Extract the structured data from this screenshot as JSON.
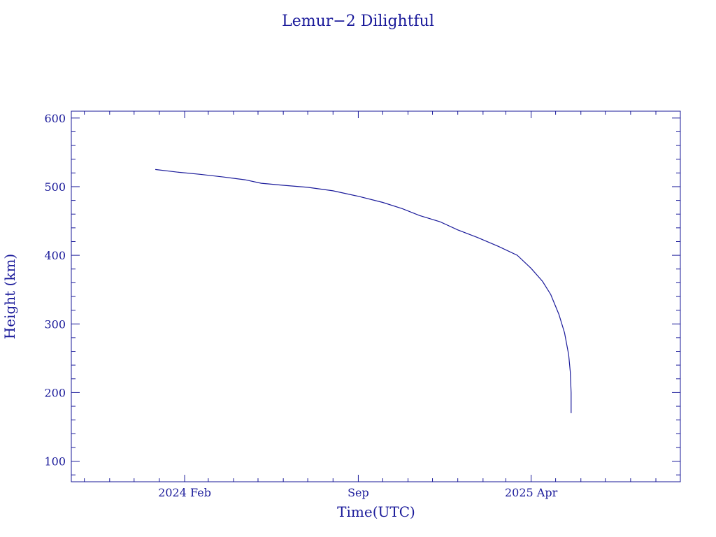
{
  "chart_data": {
    "type": "line",
    "title": "Lemur−2 Dilightful",
    "xlabel": "Time(UTC)",
    "ylabel": "Height (km)",
    "xlim": [
      "2023-09-15",
      "2025-10-01"
    ],
    "ylim": [
      70,
      610
    ],
    "x_ticks": [
      {
        "date": "2024-02-01",
        "label": "2024 Feb"
      },
      {
        "date": "2024-09-01",
        "label": "Sep"
      },
      {
        "date": "2025-04-01",
        "label": "2025 Apr"
      }
    ],
    "x_minor_tick_dates": [
      "2023-10-01",
      "2023-11-01",
      "2023-12-01",
      "2024-01-01",
      "2024-02-01",
      "2024-03-01",
      "2024-04-01",
      "2024-05-01",
      "2024-06-01",
      "2024-07-01",
      "2024-08-01",
      "2024-09-01",
      "2024-10-01",
      "2024-11-01",
      "2024-12-01",
      "2025-01-01",
      "2025-02-01",
      "2025-03-01",
      "2025-04-01",
      "2025-05-01",
      "2025-06-01",
      "2025-07-01",
      "2025-08-01",
      "2025-09-01"
    ],
    "y_ticks": [
      100,
      200,
      300,
      400,
      500,
      600
    ],
    "grid": false,
    "series": [
      {
        "color": "#1a1a9a",
        "points": [
          {
            "x": "2023-12-27",
            "y": 525
          },
          {
            "x": "2024-01-25",
            "y": 521
          },
          {
            "x": "2024-02-20",
            "y": 518
          },
          {
            "x": "2024-03-20",
            "y": 514
          },
          {
            "x": "2024-04-15",
            "y": 510
          },
          {
            "x": "2024-05-05",
            "y": 505
          },
          {
            "x": "2024-06-01",
            "y": 502
          },
          {
            "x": "2024-07-01",
            "y": 499
          },
          {
            "x": "2024-08-01",
            "y": 494
          },
          {
            "x": "2024-09-01",
            "y": 486
          },
          {
            "x": "2024-10-01",
            "y": 477
          },
          {
            "x": "2024-10-25",
            "y": 468
          },
          {
            "x": "2024-11-15",
            "y": 458
          },
          {
            "x": "2024-12-10",
            "y": 449
          },
          {
            "x": "2025-01-01",
            "y": 437
          },
          {
            "x": "2025-01-25",
            "y": 426
          },
          {
            "x": "2025-02-20",
            "y": 413
          },
          {
            "x": "2025-03-15",
            "y": 400
          },
          {
            "x": "2025-04-01",
            "y": 381
          },
          {
            "x": "2025-04-15",
            "y": 362
          },
          {
            "x": "2025-04-25",
            "y": 343
          },
          {
            "x": "2025-05-05",
            "y": 314
          },
          {
            "x": "2025-05-12",
            "y": 287
          },
          {
            "x": "2025-05-17",
            "y": 255
          },
          {
            "x": "2025-05-19",
            "y": 230
          },
          {
            "x": "2025-05-20",
            "y": 200
          },
          {
            "x": "2025-05-20",
            "y": 170
          }
        ]
      }
    ]
  }
}
